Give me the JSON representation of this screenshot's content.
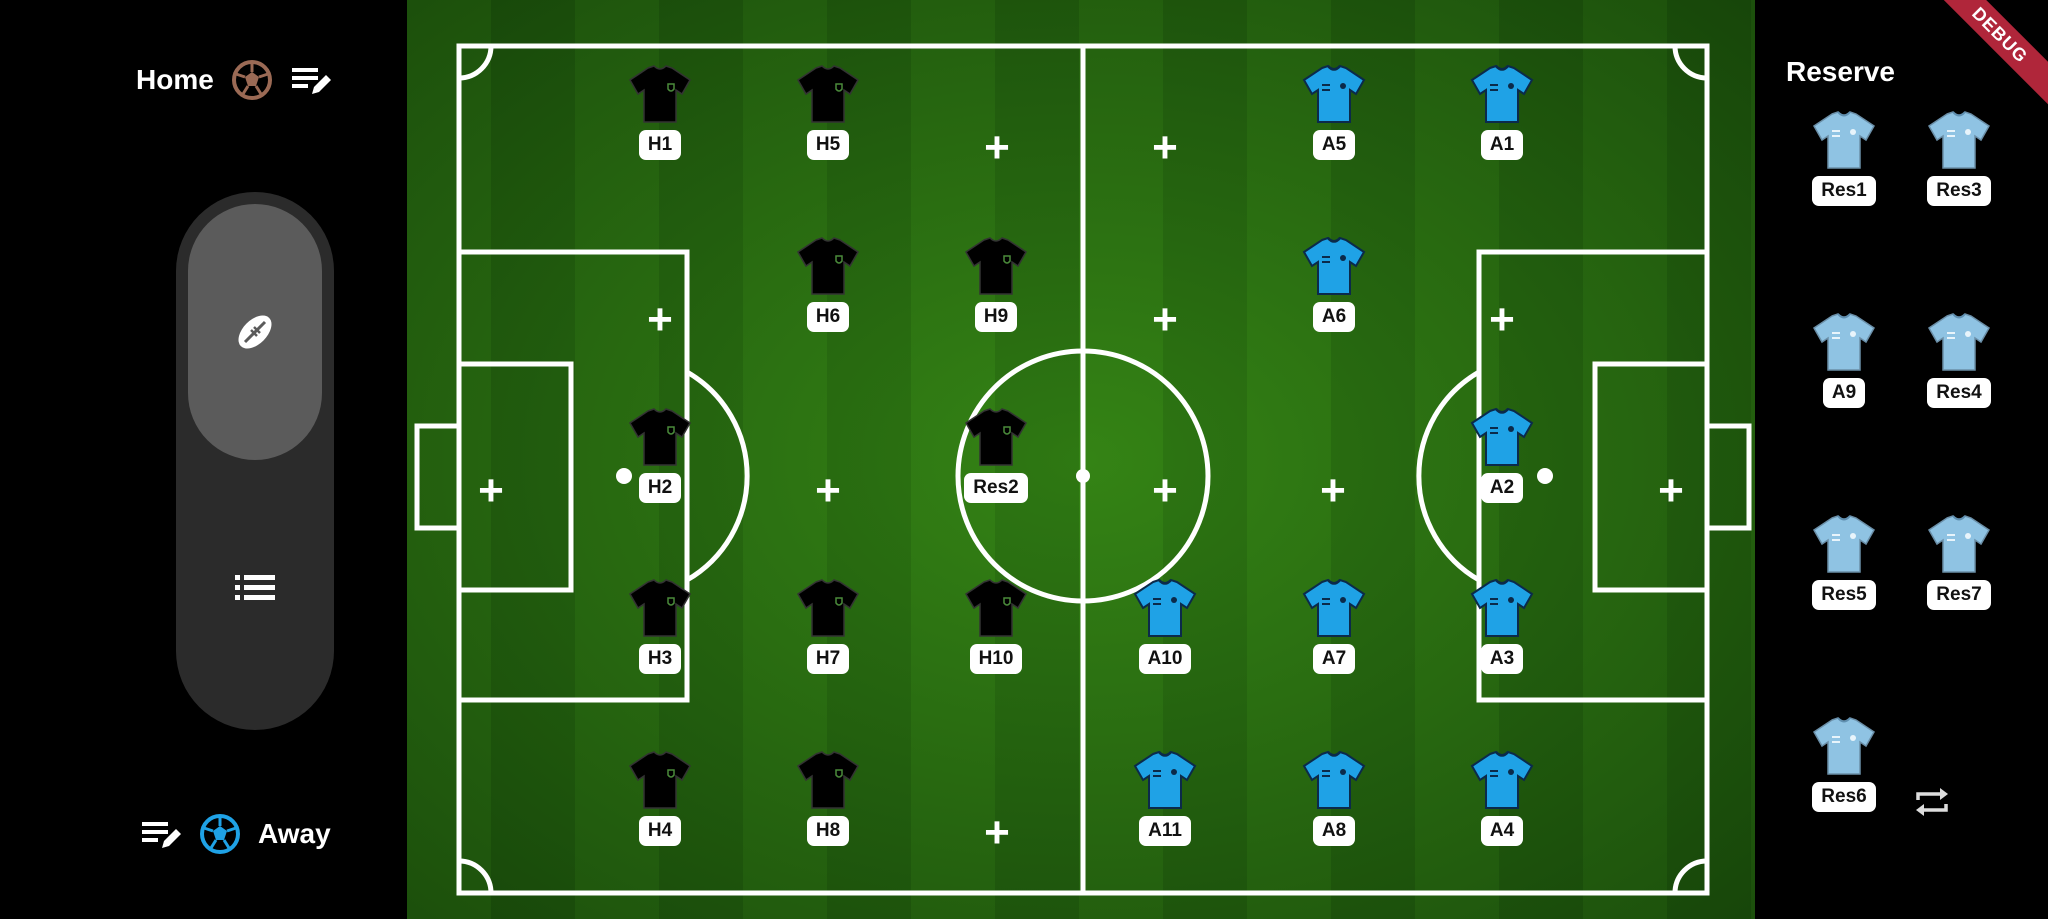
{
  "home": {
    "label": "Home"
  },
  "away": {
    "label": "Away"
  },
  "reserve": {
    "title": "Reserve"
  },
  "colors": {
    "home_shirt": "#000000",
    "away_shirt": "#1fa2e6",
    "reserve_shirt": "#8fc3e3",
    "home_ball": "#9b6a55",
    "away_ball": "#1fa2e6",
    "pitch": "#2b7a12"
  },
  "icons": {
    "mode_selected": "rugby-ball-icon",
    "mode_list": "list-icon",
    "edit": "edit-list-icon",
    "swap": "swap-icon"
  },
  "players": {
    "H1": "H1",
    "H5": "H5",
    "H6": "H6",
    "H9": "H9",
    "H2": "H2",
    "Res2": "Res2",
    "H3": "H3",
    "H7": "H7",
    "H10": "H10",
    "H4": "H4",
    "H8": "H8",
    "A5": "A5",
    "A1": "A1",
    "A6": "A6",
    "A2": "A2",
    "A10": "A10",
    "A7": "A7",
    "A3": "A3",
    "A11": "A11",
    "A8": "A8",
    "A4": "A4"
  },
  "reserves": [
    "Res1",
    "Res3",
    "A9",
    "Res4",
    "Res5",
    "Res7",
    "Res6"
  ],
  "debug_banner": "DEBUG"
}
